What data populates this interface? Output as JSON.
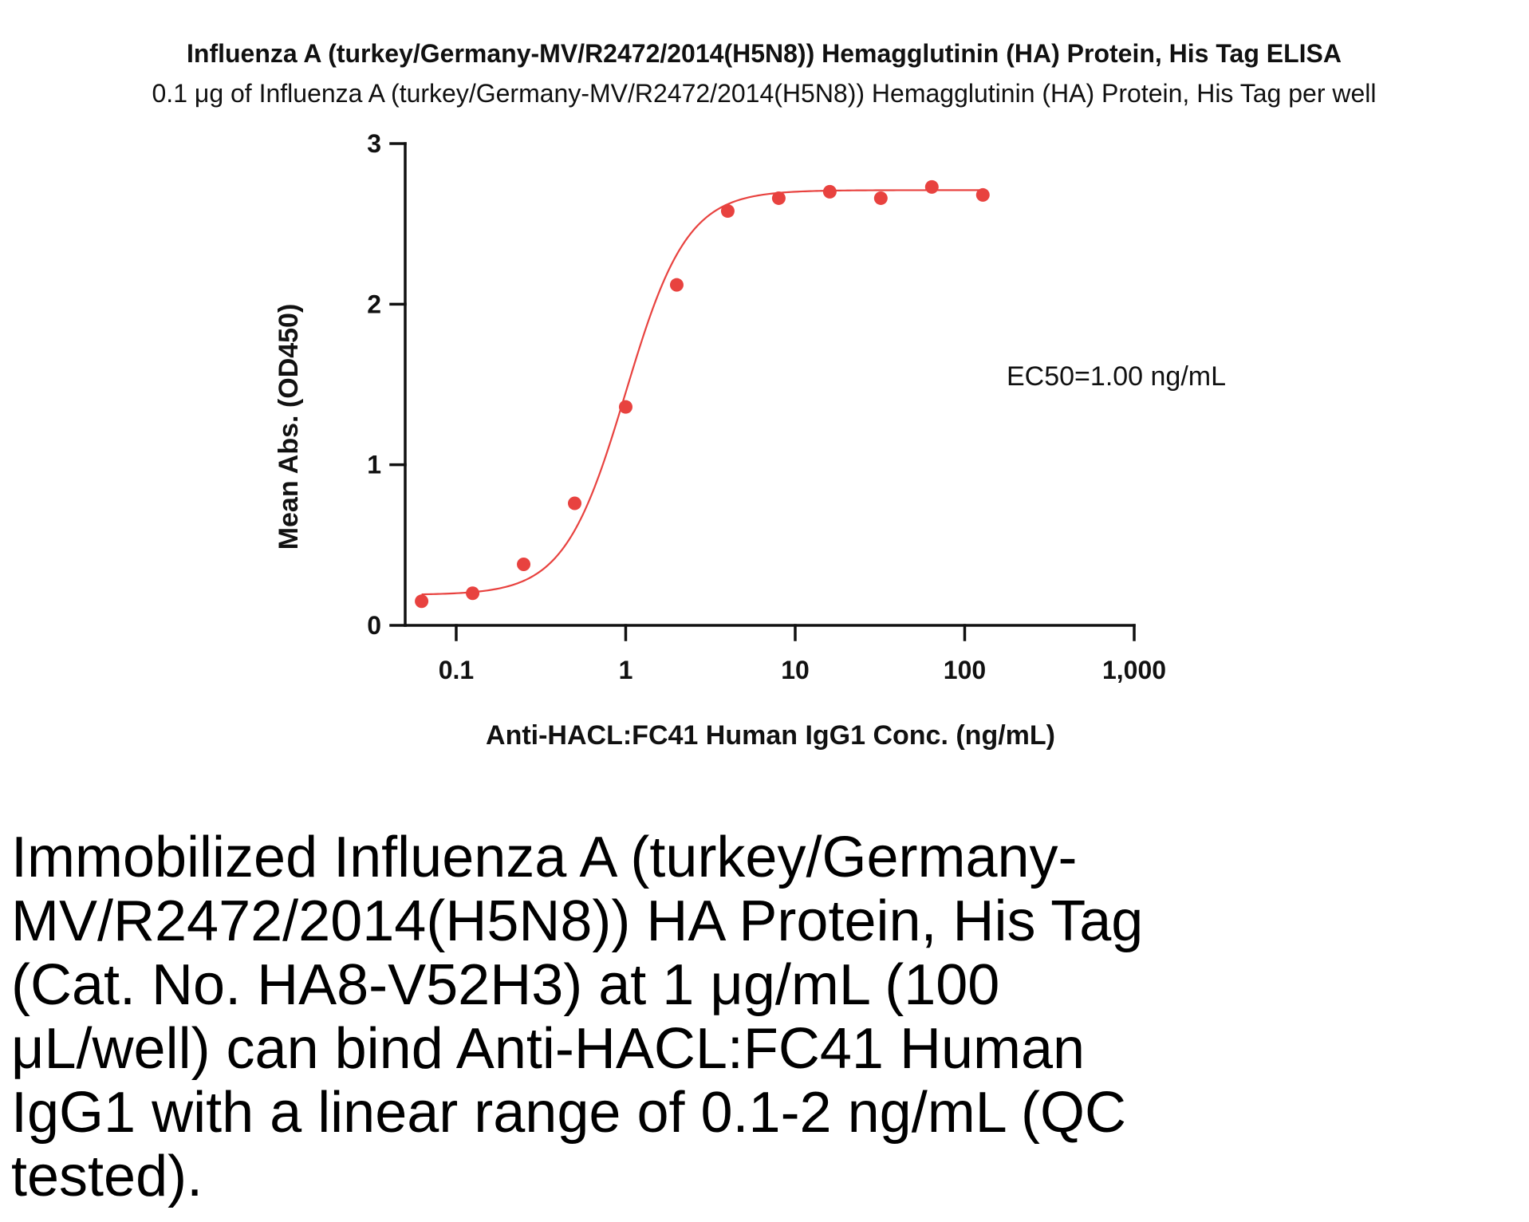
{
  "chart_data": {
    "type": "scatter",
    "title": "Influenza A (turkey/Germany-MV/R2472/2014(H5N8)) Hemagglutinin (HA) Protein, His Tag ELISA",
    "subtitle": "0.1 μg of Influenza A (turkey/Germany-MV/R2472/2014(H5N8)) Hemagglutinin (HA) Protein, His Tag per well",
    "xlabel": "Anti-HACL:FC41 Human IgG1 Conc. (ng/mL)",
    "ylabel": "Mean Abs. (OD450)",
    "x_scale": "log",
    "xlim": [
      0.05,
      1000
    ],
    "ylim": [
      0,
      3
    ],
    "x_ticks": [
      0.1,
      1,
      10,
      100,
      1000
    ],
    "x_tick_labels": [
      "0.1",
      "1",
      "10",
      "100",
      "1,000"
    ],
    "y_ticks": [
      0,
      1,
      2,
      3
    ],
    "y_tick_labels": [
      "0",
      "1",
      "2",
      "3"
    ],
    "grid": false,
    "series": [
      {
        "color": "#e8423f",
        "x": [
          0.0625,
          0.125,
          0.25,
          0.5,
          1,
          2,
          4,
          8,
          16,
          32,
          64,
          128
        ],
        "y": [
          0.15,
          0.2,
          0.38,
          0.76,
          1.36,
          2.12,
          2.58,
          2.66,
          2.7,
          2.66,
          2.73,
          2.68
        ]
      }
    ],
    "annotations": [
      "EC50=1.00 ng/mL"
    ]
  },
  "caption": "Immobilized Influenza A (turkey/Germany-MV/R2472/2014(H5N8)) HA Protein, His Tag (Cat. No. HA8-V52H3) at 1 μg/mL (100 μL/well) can bind Anti-HACL:FC41 Human IgG1 with a linear range of 0.1-2 ng/mL (QC tested)."
}
